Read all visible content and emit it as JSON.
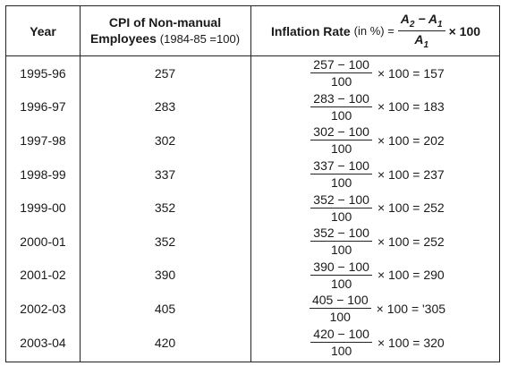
{
  "header": {
    "year": "Year",
    "cpi_line1": "CPI of Non-manual",
    "cpi_line2_bold": "Employees",
    "cpi_line2_normal": "(1984-85 =100)",
    "rate_label": "Inflation Rate",
    "rate_unit": "(in %) =",
    "formula_num": "A2 − A1",
    "formula_den": "A1",
    "formula_tail": "× 100"
  },
  "rows": [
    {
      "year": "1995-96",
      "cpi": "257",
      "num": "257 − 100",
      "den": "100",
      "tail": "× 100 = 157"
    },
    {
      "year": "1996-97",
      "cpi": "283",
      "num": "283 − 100",
      "den": "100",
      "tail": "× 100 = 183"
    },
    {
      "year": "1997-98",
      "cpi": "302",
      "num": "302 − 100",
      "den": "100",
      "tail": "× 100 = 202"
    },
    {
      "year": "1998-99",
      "cpi": "337",
      "num": "337 − 100",
      "den": "100",
      "tail": "× 100 = 237"
    },
    {
      "year": "1999-00",
      "cpi": "352",
      "num": "352 − 100",
      "den": "100",
      "tail": "× 100 = 252"
    },
    {
      "year": "2000-01",
      "cpi": "352",
      "num": "352 − 100",
      "den": "100",
      "tail": "× 100 = 252"
    },
    {
      "year": "2001-02",
      "cpi": "390",
      "num": "390 − 100",
      "den": "100",
      "tail": "× 100 = 290"
    },
    {
      "year": "2002-03",
      "cpi": "405",
      "num": "405 − 100",
      "den": "100",
      "tail": "× 100 = '305"
    },
    {
      "year": "2003-04",
      "cpi": "420",
      "num": "420 − 100",
      "den": "100",
      "tail": "× 100 = 320"
    }
  ]
}
